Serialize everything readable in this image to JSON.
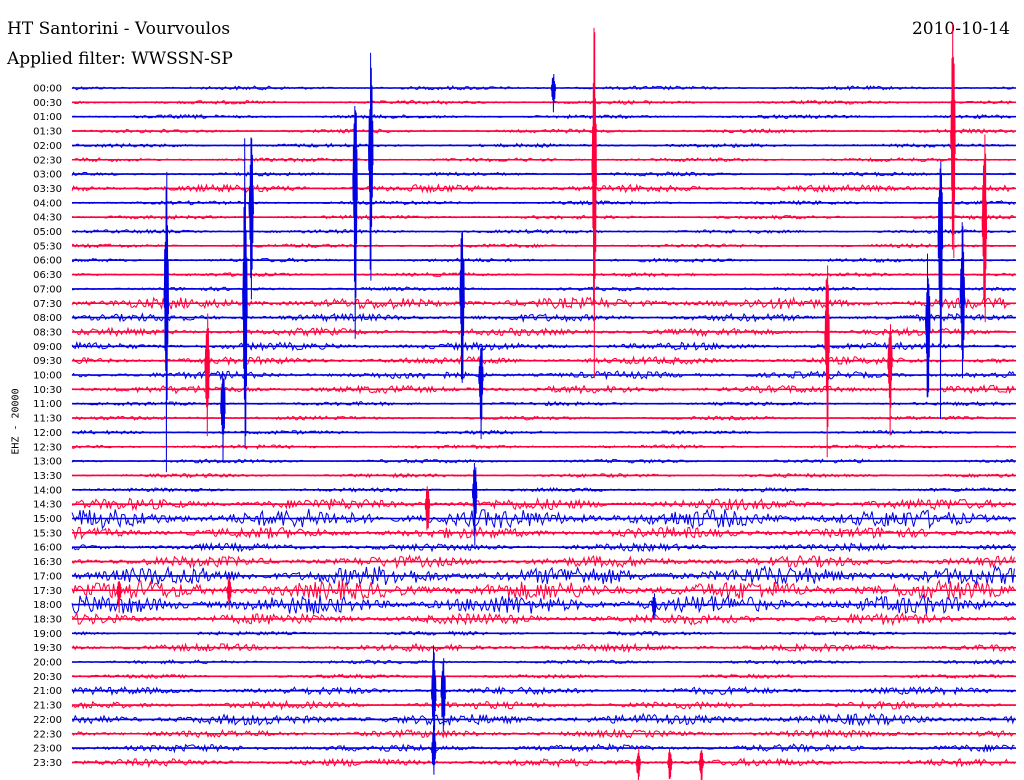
{
  "header": {
    "title": "HT Santorini - Vourvoulos",
    "date": "2010-10-14",
    "filter_label": "Applied filter: WWSSN-SP"
  },
  "colors": {
    "blue": "#0000e0",
    "red": "#ff003c"
  },
  "chart_data": {
    "type": "line",
    "subtype": "helicorder",
    "title": "HT Santorini - Vourvoulos",
    "ylabel": "EHZ - 20000",
    "date": "2010-10-14",
    "filter": "WWSSN-SP",
    "row_interval_minutes": 30,
    "alternating_colors": [
      "blue",
      "red"
    ],
    "rows": [
      "00:00",
      "00:30",
      "01:00",
      "01:30",
      "02:00",
      "02:30",
      "03:00",
      "03:30",
      "04:00",
      "04:30",
      "05:00",
      "05:30",
      "06:00",
      "06:30",
      "07:00",
      "07:30",
      "08:00",
      "08:30",
      "09:00",
      "09:30",
      "10:00",
      "10:30",
      "11:00",
      "11:30",
      "12:00",
      "12:30",
      "13:00",
      "13:30",
      "14:00",
      "14:30",
      "15:00",
      "15:30",
      "16:00",
      "16:30",
      "17:00",
      "17:30",
      "18:00",
      "18:30",
      "19:00",
      "19:30",
      "20:00",
      "20:30",
      "21:00",
      "21:30",
      "22:00",
      "22:30",
      "23:00",
      "23:30"
    ],
    "noise_level": [
      1,
      1,
      1,
      1,
      1,
      1,
      1,
      2,
      1,
      1,
      1,
      1,
      1,
      1,
      1,
      3,
      2,
      2,
      2,
      2,
      2,
      2,
      1,
      1,
      1,
      1,
      1,
      1,
      1,
      3,
      5,
      3,
      2,
      3,
      5,
      5,
      5,
      3,
      1,
      2,
      1,
      1,
      2,
      2,
      3,
      2,
      2,
      2
    ],
    "events": [
      {
        "row": 0,
        "minute": 15.3,
        "amp": 28
      },
      {
        "row": 3,
        "minute": 28.0,
        "amp": 200
      },
      {
        "row": 4,
        "minute": 9.5,
        "amp": 180
      },
      {
        "row": 5,
        "minute": 16.6,
        "amp": 220
      },
      {
        "row": 6,
        "minute": 9.0,
        "amp": 190
      },
      {
        "row": 8,
        "minute": 5.7,
        "amp": 120
      },
      {
        "row": 9,
        "minute": 29.0,
        "amp": 160
      },
      {
        "row": 10,
        "minute": 27.6,
        "amp": 200
      },
      {
        "row": 14,
        "minute": 3.0,
        "amp": 200
      },
      {
        "row": 14,
        "minute": 5.5,
        "amp": 260
      },
      {
        "row": 14,
        "minute": 12.4,
        "amp": 150
      },
      {
        "row": 14,
        "minute": 28.3,
        "amp": 120
      },
      {
        "row": 16,
        "minute": 27.2,
        "amp": 120
      },
      {
        "row": 17,
        "minute": 24.0,
        "amp": 150
      },
      {
        "row": 19,
        "minute": 4.3,
        "amp": 90
      },
      {
        "row": 19,
        "minute": 26.0,
        "amp": 80
      },
      {
        "row": 20,
        "minute": 13.0,
        "amp": 70
      },
      {
        "row": 22,
        "minute": 4.8,
        "amp": 80
      },
      {
        "row": 28,
        "minute": 12.8,
        "amp": 60
      },
      {
        "row": 29,
        "minute": 11.3,
        "amp": 40
      },
      {
        "row": 35,
        "minute": 1.5,
        "amp": 25
      },
      {
        "row": 35,
        "minute": 5.0,
        "amp": 25
      },
      {
        "row": 36,
        "minute": 18.5,
        "amp": 20
      },
      {
        "row": 42,
        "minute": 11.5,
        "amp": 80
      },
      {
        "row": 42,
        "minute": 11.8,
        "amp": 70
      },
      {
        "row": 46,
        "minute": 11.5,
        "amp": 40
      },
      {
        "row": 47,
        "minute": 18.0,
        "amp": 25
      },
      {
        "row": 47,
        "minute": 19.0,
        "amp": 25
      },
      {
        "row": 47,
        "minute": 20.0,
        "amp": 25
      }
    ]
  }
}
